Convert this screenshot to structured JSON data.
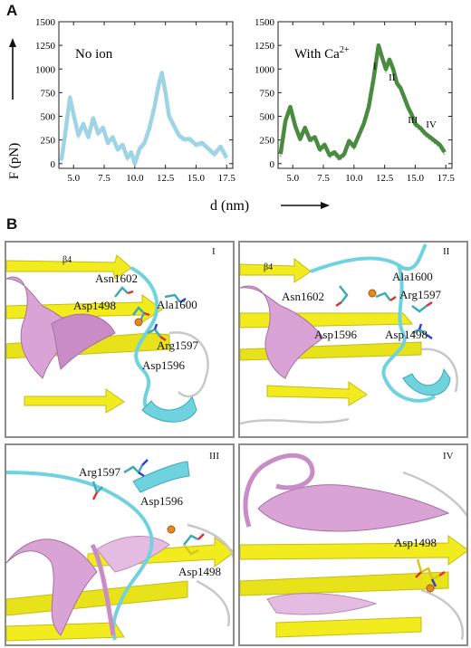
{
  "panel_a": {
    "label": "A",
    "y_axis_label": "F (pN)",
    "x_axis_label": "d (nm)",
    "chart_data": [
      {
        "type": "line",
        "title": "No ion",
        "series_color": "#9fd3e6",
        "xlim": [
          3.8,
          18
        ],
        "ylim": [
          -50,
          1500
        ],
        "x_ticks": [
          "5.0",
          "7.5",
          "10.0",
          "12.5",
          "15.0",
          "17.5"
        ],
        "y_ticks": [
          "0",
          "250",
          "500",
          "750",
          "1000",
          "1250",
          "1500"
        ],
        "x": [
          4.0,
          4.3,
          4.7,
          5.0,
          5.4,
          5.8,
          6.2,
          6.6,
          7.0,
          7.4,
          7.8,
          8.2,
          8.6,
          9.0,
          9.4,
          9.7,
          10.0,
          10.4,
          10.8,
          11.2,
          11.6,
          11.9,
          12.2,
          12.5,
          12.8,
          13.2,
          13.6,
          14.0,
          14.5,
          15.0,
          15.5,
          16.0,
          16.5,
          17.0,
          17.5
        ],
        "y": [
          30,
          300,
          700,
          520,
          300,
          420,
          280,
          480,
          320,
          380,
          220,
          280,
          150,
          200,
          60,
          120,
          0,
          160,
          220,
          380,
          600,
          800,
          960,
          760,
          500,
          400,
          300,
          260,
          260,
          200,
          220,
          160,
          100,
          180,
          60
        ]
      },
      {
        "type": "line",
        "title": "With Ca2+",
        "title_text": "With Ca",
        "title_sup": "2+",
        "series_color": "#4a8c3f",
        "xlim": [
          3.8,
          18
        ],
        "ylim": [
          -50,
          1500
        ],
        "x_ticks": [
          "5.0",
          "7.5",
          "10.0",
          "12.5",
          "15.0",
          "17.5"
        ],
        "y_ticks": [
          "0",
          "250",
          "500",
          "750",
          "1000",
          "1250",
          "1500"
        ],
        "x": [
          4.0,
          4.4,
          4.8,
          5.2,
          5.6,
          6.0,
          6.4,
          6.8,
          7.2,
          7.6,
          8.0,
          8.4,
          8.8,
          9.2,
          9.6,
          10.0,
          10.4,
          10.8,
          11.2,
          11.6,
          12.0,
          12.3,
          12.6,
          12.9,
          13.2,
          13.5,
          13.8,
          14.1,
          14.4,
          14.7,
          15.0,
          15.4,
          15.8,
          16.2,
          16.6,
          17.0,
          17.4
        ],
        "y": [
          100,
          450,
          600,
          400,
          260,
          380,
          250,
          280,
          150,
          200,
          90,
          120,
          60,
          100,
          240,
          180,
          300,
          420,
          600,
          900,
          1250,
          1120,
          1000,
          1100,
          1000,
          850,
          800,
          700,
          600,
          520,
          420,
          380,
          320,
          280,
          240,
          200,
          120
        ],
        "annotations": [
          {
            "label": "I",
            "x": 11.7,
            "y": 1000
          },
          {
            "label": "II",
            "x": 13.1,
            "y": 880
          },
          {
            "label": "III",
            "x": 14.8,
            "y": 430
          },
          {
            "label": "IV",
            "x": 16.3,
            "y": 380
          }
        ]
      }
    ]
  },
  "panel_b": {
    "label": "B",
    "sub_panels": [
      {
        "numeral": "I",
        "labels": {
          "beta4": "β4",
          "asn1602": "Asn1602",
          "asp1498": "Asp1498",
          "ala1600": "Ala1600",
          "arg1597": "Arg1597",
          "asp1596": "Asp1596"
        }
      },
      {
        "numeral": "II",
        "labels": {
          "beta4": "β4",
          "ala1600": "Ala1600",
          "asn1602": "Asn1602",
          "arg1597": "Arg1597",
          "asp1596": "Asp1596",
          "asp1498": "Asp1498"
        }
      },
      {
        "numeral": "III",
        "labels": {
          "arg1597": "Arg1597",
          "asp1596": "Asp1596",
          "asp1498": "Asp1498"
        }
      },
      {
        "numeral": "IV",
        "labels": {
          "asp1498": "Asp1498"
        }
      }
    ],
    "colors": {
      "helix": "#d9a3d6",
      "helix_dark": "#b97ab6",
      "strand": "#f2ec1f",
      "loop": "#6fd3df",
      "coil": "#c8c8c8",
      "ion": "#e58a1f"
    }
  }
}
